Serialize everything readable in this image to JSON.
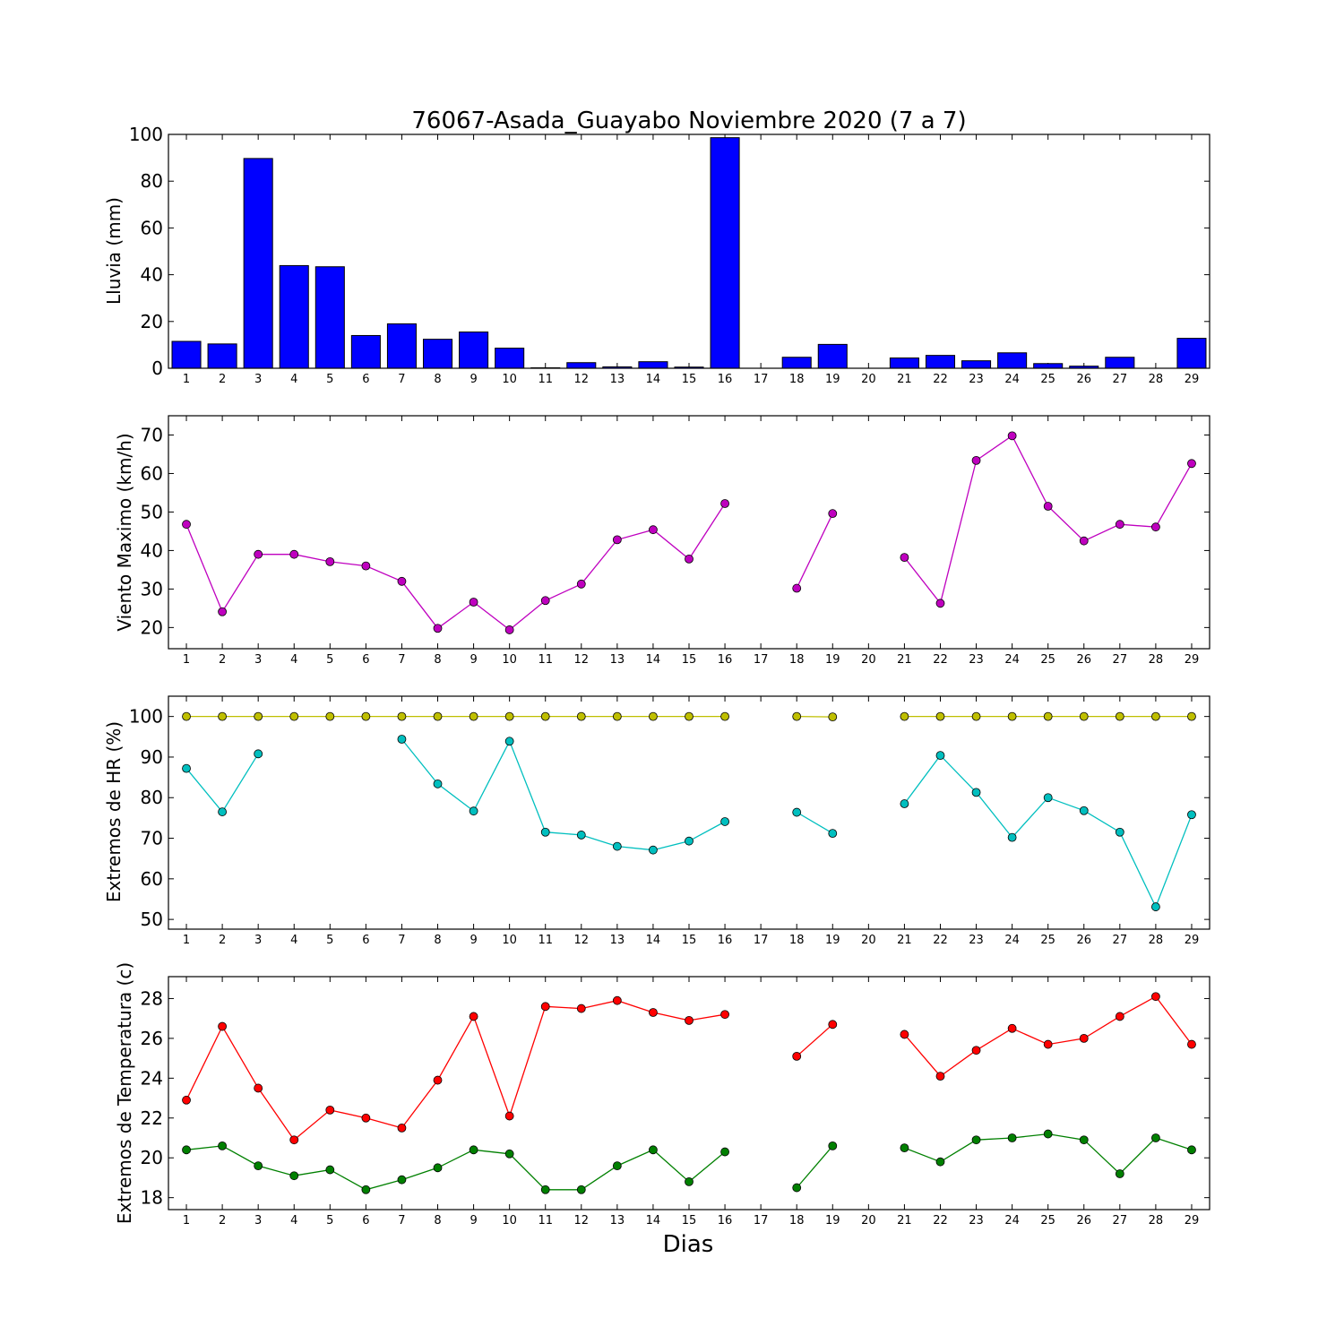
{
  "chart_data": [
    {
      "type": "bar",
      "title": "76067-Asada_Guayabo Noviembre 2020  (7 a 7)",
      "ylabel": "Lluvia (mm)",
      "xlabel": "",
      "ylim": [
        0,
        100
      ],
      "yticks": [
        0,
        20,
        40,
        60,
        80,
        100
      ],
      "categories": [
        "1",
        "2",
        "3",
        "4",
        "5",
        "6",
        "7",
        "8",
        "9",
        "10",
        "11",
        "12",
        "13",
        "14",
        "15",
        "16",
        "17",
        "18",
        "19",
        "20",
        "21",
        "22",
        "23",
        "24",
        "25",
        "26",
        "27",
        "28",
        "29"
      ],
      "values": [
        11.5,
        10.4,
        89.7,
        43.9,
        43.4,
        14.0,
        19.0,
        12.4,
        15.5,
        8.6,
        0.2,
        2.4,
        0.6,
        2.8,
        0.5,
        98.6,
        0.0,
        4.7,
        10.2,
        0.0,
        4.4,
        5.5,
        3.2,
        6.6,
        2.0,
        0.9,
        4.7,
        0.0,
        12.8
      ],
      "bar_color": "#0000ff"
    },
    {
      "type": "line",
      "ylabel": "Viento Maximo (km/h)",
      "ylim": [
        14.5,
        75
      ],
      "yticks": [
        20,
        30,
        40,
        50,
        60,
        70
      ],
      "categories": [
        "1",
        "2",
        "3",
        "4",
        "5",
        "6",
        "7",
        "8",
        "9",
        "10",
        "11",
        "12",
        "13",
        "14",
        "15",
        "16",
        "17",
        "18",
        "19",
        "20",
        "21",
        "22",
        "23",
        "24",
        "25",
        "26",
        "27",
        "28",
        "29"
      ],
      "series": [
        {
          "color": "#bf00bf",
          "values": [
            46.8,
            24.1,
            39.0,
            39.0,
            37.1,
            36.0,
            32.0,
            19.8,
            26.6,
            19.4,
            27.0,
            31.3,
            42.8,
            45.4,
            37.8,
            52.2,
            null,
            30.2,
            49.6,
            null,
            38.2,
            26.3,
            63.4,
            69.8,
            51.5,
            42.5,
            46.8,
            46.1,
            62.6
          ]
        }
      ]
    },
    {
      "type": "line",
      "ylabel": "Extremos de HR (%)",
      "ylim": [
        47.6,
        105
      ],
      "yticks": [
        50,
        60,
        70,
        80,
        90,
        100
      ],
      "categories": [
        "1",
        "2",
        "3",
        "4",
        "5",
        "6",
        "7",
        "8",
        "9",
        "10",
        "11",
        "12",
        "13",
        "14",
        "15",
        "16",
        "17",
        "18",
        "19",
        "20",
        "21",
        "22",
        "23",
        "24",
        "25",
        "26",
        "27",
        "28",
        "29"
      ],
      "series": [
        {
          "color": "#bfbf00",
          "values": [
            100,
            100,
            100,
            100,
            100,
            100,
            100,
            100,
            100,
            100,
            100,
            100,
            100,
            100,
            100,
            100,
            null,
            100,
            99.9,
            null,
            100,
            100,
            100,
            100,
            100,
            100,
            100,
            100,
            100
          ]
        },
        {
          "color": "#00bfbf",
          "values": [
            87.2,
            76.5,
            90.8,
            null,
            null,
            null,
            94.4,
            83.4,
            76.7,
            93.9,
            71.5,
            70.8,
            68.0,
            67.1,
            69.3,
            74.1,
            null,
            76.4,
            71.2,
            null,
            78.5,
            90.4,
            81.3,
            70.2,
            80.0,
            76.8,
            71.5,
            53.1,
            75.8
          ]
        }
      ]
    },
    {
      "type": "line",
      "ylabel": "Extremos de Temperatura (c)",
      "xlabel": "Dias",
      "ylim": [
        17.4,
        29.1
      ],
      "yticks": [
        18,
        20,
        22,
        24,
        26,
        28
      ],
      "categories": [
        "1",
        "2",
        "3",
        "4",
        "5",
        "6",
        "7",
        "8",
        "9",
        "10",
        "11",
        "12",
        "13",
        "14",
        "15",
        "16",
        "17",
        "18",
        "19",
        "20",
        "21",
        "22",
        "23",
        "24",
        "25",
        "26",
        "27",
        "28",
        "29"
      ],
      "series": [
        {
          "color": "#ff0000",
          "values": [
            22.9,
            26.6,
            23.5,
            20.9,
            22.4,
            22.0,
            21.5,
            23.9,
            27.1,
            22.1,
            27.6,
            27.5,
            27.9,
            27.3,
            26.9,
            27.2,
            null,
            25.1,
            26.7,
            null,
            26.2,
            24.1,
            25.4,
            26.5,
            25.7,
            26.0,
            27.1,
            28.1,
            25.7
          ]
        },
        {
          "color": "#008000",
          "values": [
            20.4,
            20.6,
            19.6,
            19.1,
            19.4,
            18.4,
            18.9,
            19.5,
            20.4,
            20.2,
            18.4,
            18.4,
            19.6,
            20.4,
            18.8,
            20.3,
            null,
            18.5,
            20.6,
            null,
            20.5,
            19.8,
            20.9,
            21.0,
            21.2,
            20.9,
            19.2,
            21.0,
            20.4
          ]
        }
      ]
    }
  ]
}
